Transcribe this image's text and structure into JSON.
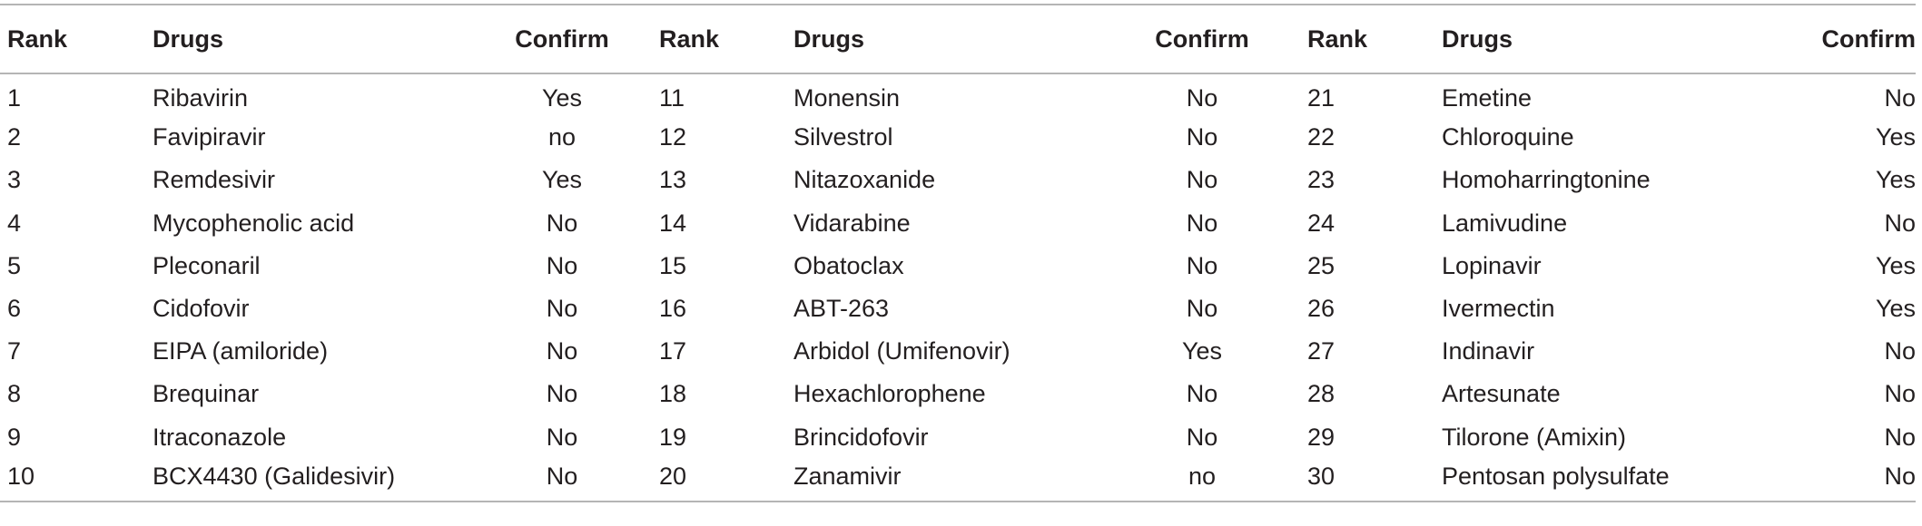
{
  "table": {
    "headers": [
      "Rank",
      "Drugs",
      "Confirm",
      "Rank",
      "Drugs",
      "Confirm",
      "Rank",
      "Drugs",
      "Confirm"
    ],
    "rows": [
      [
        "1",
        "Ribavirin",
        "Yes",
        "11",
        "Monensin",
        "No",
        "21",
        "Emetine",
        "No"
      ],
      [
        "2",
        "Favipiravir",
        "no",
        "12",
        "Silvestrol",
        "No",
        "22",
        "Chloroquine",
        "Yes"
      ],
      [
        "3",
        "Remdesivir",
        "Yes",
        "13",
        "Nitazoxanide",
        "No",
        "23",
        "Homoharringtonine",
        "Yes"
      ],
      [
        "4",
        "Mycophenolic acid",
        "No",
        "14",
        "Vidarabine",
        "No",
        "24",
        "Lamivudine",
        "No"
      ],
      [
        "5",
        "Pleconaril",
        "No",
        "15",
        "Obatoclax",
        "No",
        "25",
        "Lopinavir",
        "Yes"
      ],
      [
        "6",
        "Cidofovir",
        "No",
        "16",
        "ABT-263",
        "No",
        "26",
        "Ivermectin",
        "Yes"
      ],
      [
        "7",
        "EIPA (amiloride)",
        "No",
        "17",
        "Arbidol (Umifenovir)",
        "Yes",
        "27",
        "Indinavir",
        "No"
      ],
      [
        "8",
        "Brequinar",
        "No",
        "18",
        "Hexachlorophene",
        "No",
        "28",
        "Artesunate",
        "No"
      ],
      [
        "9",
        "Itraconazole",
        "No",
        "19",
        "Brincidofovir",
        "No",
        "29",
        "Tilorone (Amixin)",
        "No"
      ],
      [
        "10",
        "BCX4430 (Galidesivir)",
        "No",
        "20",
        "Zanamivir",
        "no",
        "30",
        "Pentosan polysulfate",
        "No"
      ]
    ]
  }
}
